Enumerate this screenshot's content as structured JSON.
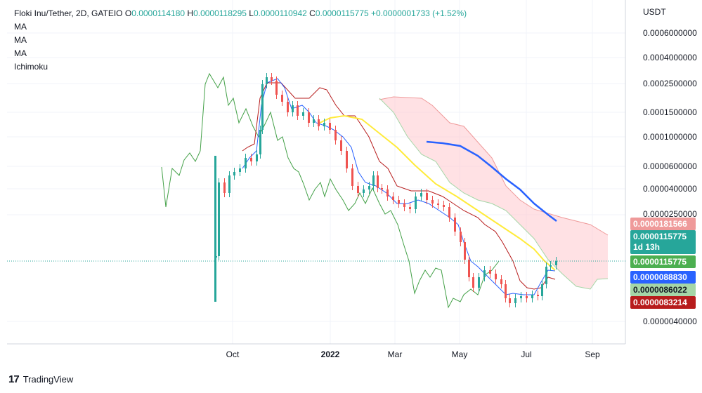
{
  "legend": {
    "symbol": "Floki Inu/Tether, 2D, GATEIO",
    "o_label": "O",
    "o": "0.0000114180",
    "h_label": "H",
    "h": "0.0000118295",
    "l_label": "L",
    "l": "0.0000110942",
    "c_label": "C",
    "c": "0.0000115775",
    "change": "+0.0000001733 (+1.52%)",
    "indicators": [
      "MA",
      "MA",
      "MA",
      "Ichimoku"
    ]
  },
  "price_axis": {
    "currency": "USDT",
    "labels": [
      "0.0006000000",
      "0.0004000000",
      "0.0002500000",
      "0.0001500000",
      "0.0001000000",
      "0.0000600000",
      "0.0000400000",
      "0.0000250000",
      "0.0000040000"
    ]
  },
  "price_tags": [
    {
      "value": "0.0000181566",
      "color": "#ef9a9a",
      "text_color": "#ffffff"
    },
    {
      "value": "0.0000115775",
      "sub": "1d 13h",
      "color": "#26a69a",
      "text_color": "#ffffff"
    },
    {
      "value": "0.0000115775",
      "color": "#4caf50",
      "text_color": "#ffffff"
    },
    {
      "value": "0.0000088830",
      "color": "#2962ff",
      "text_color": "#ffffff"
    },
    {
      "value": "0.0000086022",
      "color": "#a5d6a7",
      "text_color": "#131722"
    },
    {
      "value": "0.0000083214",
      "color": "#b71c1c",
      "text_color": "#ffffff"
    }
  ],
  "time_axis": {
    "labels": [
      {
        "text": "Oct",
        "bold": false
      },
      {
        "text": "2022",
        "bold": true
      },
      {
        "text": "Mar",
        "bold": false
      },
      {
        "text": "May",
        "bold": false
      },
      {
        "text": "Jul",
        "bold": false
      },
      {
        "text": "Sep",
        "bold": false
      }
    ]
  },
  "footer": {
    "brand": "TradingView",
    "logo": "17"
  },
  "colors": {
    "up": "#26a69a",
    "down": "#ef5350",
    "tenkan": "#2962ff",
    "kijun": "#b71c1c",
    "lagging": "#43a047",
    "ma_yellow": "#ffeb3b",
    "ma_blue": "#2962ff",
    "cloud": "#ffcdd2"
  },
  "chart_data": {
    "type": "candlestick",
    "title": "Floki Inu/Tether, 2D, GATEIO",
    "scale": "log",
    "series": [
      {
        "name": "price_close_approx",
        "kind": "candles",
        "x": [
          "2021-09-20",
          "2021-10-10",
          "2021-10-25",
          "2021-11-10",
          "2021-12-01",
          "2022-01-01",
          "2022-02-01",
          "2022-03-01",
          "2022-04-01",
          "2022-05-01",
          "2022-06-01",
          "2022-06-20",
          "2022-07-10",
          "2022-07-22"
        ],
        "values": [
          4e-06,
          6.5e-05,
          7.5e-05,
          0.00028,
          0.00017,
          0.0001,
          4e-05,
          3e-05,
          3.2e-05,
          1.4e-05,
          7e-06,
          6.5e-06,
          7e-06,
          1.15775e-05
        ]
      },
      {
        "name": "MA",
        "kind": "line",
        "values": [
          0.00014,
          0.00014,
          8e-05,
          4e-05,
          2e-05,
          1.2e-05
        ]
      },
      {
        "name": "MA",
        "kind": "line",
        "values": [
          9.5e-05,
          7e-05,
          4e-05,
          2.5e-05
        ]
      },
      {
        "name": "Ichimoku",
        "kind": "cloud",
        "values": [
          0.00025,
          0.00018,
          0.0001,
          5e-05,
          2.5e-05,
          1.8e-05
        ]
      }
    ]
  }
}
